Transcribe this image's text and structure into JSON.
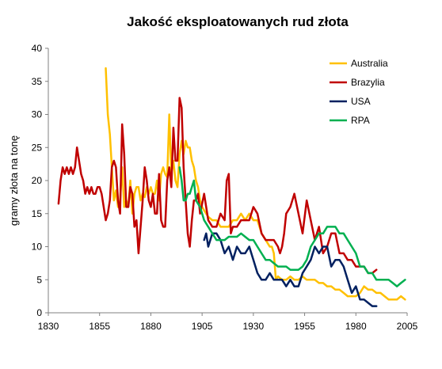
{
  "chart_data": {
    "type": "line",
    "title": "Jakość eksploatowanych rud złota",
    "xlabel": "",
    "ylabel": "gramy złota na tonę",
    "xlim": [
      1830,
      2005
    ],
    "ylim": [
      0,
      40
    ],
    "x_ticks": [
      "1830",
      "1855",
      "1880",
      "1905",
      "1930",
      "1955",
      "1980",
      "2005"
    ],
    "y_ticks": [
      "0",
      "5",
      "10",
      "15",
      "20",
      "25",
      "30",
      "35",
      "40"
    ],
    "grid": false,
    "legend_position": "top-right",
    "series": [
      {
        "name": "Australia",
        "color": "#FFC000",
        "x": [
          1858,
          1859,
          1860,
          1861,
          1862,
          1863,
          1864,
          1865,
          1866,
          1867,
          1868,
          1869,
          1870,
          1871,
          1872,
          1873,
          1874,
          1875,
          1876,
          1877,
          1878,
          1879,
          1880,
          1881,
          1882,
          1883,
          1884,
          1885,
          1886,
          1887,
          1888,
          1889,
          1890,
          1891,
          1892,
          1893,
          1894,
          1895,
          1896,
          1897,
          1898,
          1899,
          1900,
          1901,
          1902,
          1903,
          1904,
          1905,
          1906,
          1907,
          1908,
          1910,
          1912,
          1914,
          1916,
          1918,
          1920,
          1922,
          1924,
          1926,
          1928,
          1930,
          1932,
          1934,
          1936,
          1938,
          1939,
          1940,
          1941,
          1942,
          1944,
          1946,
          1948,
          1950,
          1952,
          1954,
          1956,
          1958,
          1960,
          1962,
          1964,
          1966,
          1968,
          1970,
          1972,
          1974,
          1976,
          1978,
          1980,
          1982,
          1984,
          1986,
          1988,
          1990,
          1992,
          1994,
          1996,
          1998,
          2000,
          2002,
          2004
        ],
        "y": [
          37,
          30,
          27,
          22,
          17,
          18.5,
          16,
          17,
          22,
          16,
          17,
          16,
          20,
          15,
          18,
          19,
          19,
          17,
          18,
          17.5,
          19,
          18,
          19,
          18,
          18,
          20,
          17,
          21,
          22,
          21,
          20.5,
          30,
          21,
          23,
          20,
          19,
          24,
          26,
          24,
          26,
          25,
          25,
          23,
          22,
          20,
          19,
          17,
          16,
          15.5,
          15,
          14.5,
          14,
          14,
          13,
          13,
          13,
          14,
          14,
          15,
          14,
          15,
          14,
          14,
          12,
          11,
          10,
          10,
          9,
          5,
          5.5,
          5,
          5,
          5.5,
          5,
          5,
          5.5,
          5,
          5,
          5,
          4.5,
          4.5,
          4,
          4,
          3.5,
          3.5,
          3,
          2.5,
          2.5,
          2.5,
          3,
          4,
          3.5,
          3.5,
          3,
          3,
          2.5,
          2,
          2,
          2,
          2.5,
          2
        ]
      },
      {
        "name": "Brazylia",
        "color": "#C00000",
        "x": [
          1835,
          1836,
          1837,
          1838,
          1839,
          1840,
          1841,
          1842,
          1843,
          1844,
          1845,
          1846,
          1847,
          1848,
          1849,
          1850,
          1851,
          1852,
          1853,
          1854,
          1855,
          1856,
          1857,
          1858,
          1859,
          1860,
          1861,
          1862,
          1863,
          1864,
          1865,
          1866,
          1867,
          1868,
          1869,
          1870,
          1871,
          1872,
          1873,
          1874,
          1875,
          1876,
          1877,
          1878,
          1879,
          1880,
          1881,
          1882,
          1883,
          1884,
          1885,
          1886,
          1887,
          1888,
          1889,
          1890,
          1891,
          1892,
          1893,
          1894,
          1895,
          1896,
          1897,
          1898,
          1899,
          1900,
          1901,
          1902,
          1903,
          1904,
          1906,
          1908,
          1910,
          1912,
          1914,
          1916,
          1917,
          1918,
          1919,
          1920,
          1922,
          1924,
          1926,
          1928,
          1930,
          1932,
          1934,
          1936,
          1938,
          1940,
          1942,
          1943,
          1944,
          1945,
          1946,
          1948,
          1950,
          1952,
          1954,
          1956,
          1958,
          1960,
          1962,
          1964,
          1966,
          1968,
          1970,
          1972,
          1974,
          1976,
          1978,
          1980,
          1982,
          1984,
          1986,
          1988,
          1990
        ],
        "y": [
          16.5,
          20,
          22,
          21,
          22,
          21,
          22,
          21,
          22,
          25,
          23,
          21,
          20,
          18,
          19,
          18,
          19,
          18,
          18,
          19,
          19,
          18,
          16,
          14,
          15,
          17,
          22,
          23,
          22,
          17,
          15,
          28.5,
          24,
          16,
          16,
          19,
          18,
          13,
          14,
          9,
          13,
          17,
          22,
          20,
          17,
          16,
          18,
          15,
          15,
          21,
          14,
          13,
          13,
          20,
          22,
          19,
          28,
          23,
          23,
          32.5,
          31,
          22,
          17,
          12,
          10,
          14,
          17,
          17,
          18,
          15,
          18,
          14,
          13,
          13,
          15,
          14,
          20,
          21,
          12,
          13,
          13,
          14,
          14,
          14,
          16,
          15,
          12,
          11,
          11,
          11,
          10,
          9,
          10,
          12,
          15,
          16,
          18,
          15,
          12,
          17,
          14,
          11,
          13,
          9,
          10,
          12,
          12,
          9,
          9,
          8,
          8,
          7,
          7,
          7,
          6,
          6,
          6.5
        ]
      },
      {
        "name": "USA",
        "color": "#002060",
        "x": [
          1906,
          1907,
          1908,
          1909,
          1910,
          1912,
          1914,
          1916,
          1918,
          1920,
          1922,
          1924,
          1926,
          1928,
          1930,
          1932,
          1934,
          1936,
          1938,
          1940,
          1942,
          1944,
          1946,
          1948,
          1950,
          1952,
          1954,
          1956,
          1958,
          1960,
          1962,
          1964,
          1966,
          1968,
          1970,
          1972,
          1974,
          1976,
          1978,
          1980,
          1982,
          1984,
          1986,
          1988,
          1990
        ],
        "y": [
          11,
          12,
          10,
          11,
          12,
          12,
          11,
          9,
          10,
          8,
          10,
          9,
          9,
          10,
          8,
          6,
          5,
          5,
          6,
          5,
          5,
          5,
          4,
          5,
          4,
          4,
          6,
          7,
          8,
          10,
          9,
          10,
          10,
          7,
          8,
          8,
          7,
          5,
          3,
          4,
          2,
          2,
          1.5,
          1,
          1
        ]
      },
      {
        "name": "RPA",
        "color": "#00B050",
        "x": [
          1894,
          1895,
          1896,
          1897,
          1898,
          1899,
          1900,
          1901,
          1902,
          1904,
          1906,
          1908,
          1910,
          1912,
          1914,
          1916,
          1918,
          1920,
          1922,
          1924,
          1926,
          1928,
          1930,
          1932,
          1934,
          1936,
          1938,
          1940,
          1942,
          1944,
          1946,
          1948,
          1950,
          1952,
          1954,
          1956,
          1958,
          1960,
          1962,
          1964,
          1966,
          1968,
          1970,
          1972,
          1974,
          1976,
          1978,
          1980,
          1982,
          1984,
          1986,
          1988,
          1990,
          1992,
          1994,
          1996,
          1998,
          2000,
          2002,
          2004
        ],
        "y": [
          22,
          20,
          17,
          17,
          18,
          18,
          19,
          20,
          17,
          16,
          14,
          13,
          12,
          11,
          11,
          11,
          11.5,
          11.5,
          11.5,
          12,
          11.5,
          11,
          11,
          10,
          9,
          8,
          8,
          7.5,
          7,
          7,
          7,
          6.5,
          6.5,
          6.5,
          7,
          8,
          10,
          11,
          12,
          12,
          13,
          13,
          13,
          12,
          12,
          11,
          10,
          9,
          7,
          7,
          6,
          6,
          5,
          5,
          5,
          5,
          4.5,
          4,
          4.5,
          5
        ]
      }
    ]
  }
}
